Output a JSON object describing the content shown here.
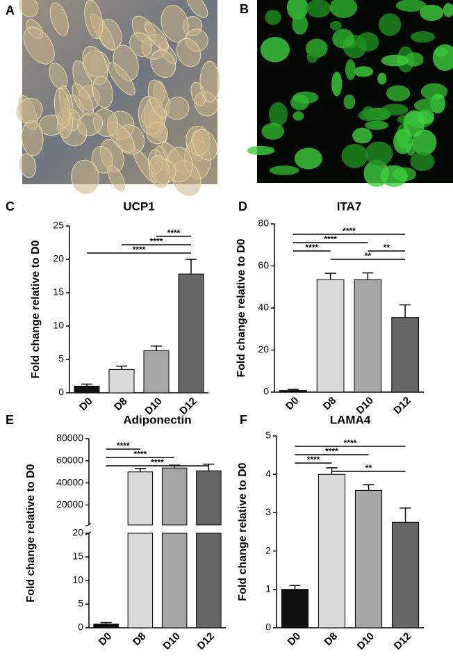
{
  "images": [
    {
      "label": "A"
    },
    {
      "label": "B"
    }
  ],
  "chart_data": [
    {
      "type": "bar",
      "label": "C",
      "title": "UCP1",
      "ylabel": "Fold  change relative to D0",
      "categories": [
        "D0",
        "D8",
        "D10",
        "D12"
      ],
      "values": [
        1.0,
        3.5,
        6.3,
        17.8
      ],
      "errors": [
        0.3,
        0.5,
        0.7,
        2.2
      ],
      "colors": [
        "#111111",
        "#d9d9d9",
        "#a6a6a6",
        "#666666"
      ],
      "ylim": [
        0,
        25
      ],
      "yticks": [
        0,
        5,
        10,
        15,
        20,
        25
      ],
      "brackets": [
        {
          "label": "****",
          "between": [
            "D0",
            "D12"
          ]
        },
        {
          "label": "****",
          "between": [
            "D8",
            "D12"
          ]
        },
        {
          "label": "****",
          "between": [
            "D10",
            "D12"
          ]
        }
      ]
    },
    {
      "type": "bar",
      "label": "D",
      "title": "ITA7",
      "ylabel": "Fold  change relative to D0",
      "categories": [
        "D0",
        "D8",
        "D10",
        "D12"
      ],
      "values": [
        0.8,
        53.5,
        53.5,
        35.5
      ],
      "errors": [
        0.5,
        3.0,
        3.2,
        6.0
      ],
      "colors": [
        "#111111",
        "#d9d9d9",
        "#a6a6a6",
        "#666666"
      ],
      "ylim": [
        0,
        80
      ],
      "yticks": [
        0,
        20,
        40,
        60,
        80
      ],
      "brackets": [
        {
          "label": "**",
          "between": [
            "D8",
            "D12"
          ]
        },
        {
          "label": "****",
          "between": [
            "D0",
            "D8"
          ]
        },
        {
          "label": "**",
          "between": [
            "D10",
            "D12"
          ]
        },
        {
          "label": "****",
          "between": [
            "D0",
            "D10"
          ]
        },
        {
          "label": "****",
          "between": [
            "D0",
            "D12"
          ]
        }
      ]
    },
    {
      "type": "bar",
      "label": "E",
      "title": "Adiponectin",
      "ylabel": "Fold  change relative to D0",
      "categories": [
        "D0",
        "D8",
        "D10",
        "D12"
      ],
      "values": [
        0.8,
        50000,
        53500,
        51000
      ],
      "errors": [
        0.3,
        3000,
        2500,
        6000
      ],
      "colors": [
        "#111111",
        "#d9d9d9",
        "#a6a6a6",
        "#666666"
      ],
      "segments": [
        {
          "ylim": [
            0,
            20
          ],
          "yticks": [
            0,
            5,
            10,
            15,
            20
          ]
        },
        {
          "ylim": [
            2000,
            80000
          ],
          "yticks": [
            20000,
            40000,
            60000,
            80000
          ]
        }
      ],
      "brackets": [
        {
          "label": "****",
          "between": [
            "D0",
            "D12"
          ]
        },
        {
          "label": "****",
          "between": [
            "D0",
            "D10"
          ]
        },
        {
          "label": "****",
          "between": [
            "D0",
            "D8"
          ]
        }
      ]
    },
    {
      "type": "bar",
      "label": "F",
      "title": "LAMA4",
      "ylabel": "Fold  change relative to D0",
      "categories": [
        "D0",
        "D8",
        "D10",
        "D12"
      ],
      "values": [
        1.0,
        4.0,
        3.58,
        2.75
      ],
      "errors": [
        0.1,
        0.17,
        0.15,
        0.37
      ],
      "colors": [
        "#111111",
        "#d9d9d9",
        "#a6a6a6",
        "#666666"
      ],
      "ylim": [
        0,
        5
      ],
      "yticks": [
        0,
        1,
        2,
        3,
        4,
        5
      ],
      "brackets": [
        {
          "label": "**",
          "between": [
            "D8",
            "D12"
          ]
        },
        {
          "label": "****",
          "between": [
            "D0",
            "D8"
          ]
        },
        {
          "label": "****",
          "between": [
            "D0",
            "D10"
          ]
        },
        {
          "label": "****",
          "between": [
            "D0",
            "D12"
          ]
        }
      ]
    }
  ]
}
